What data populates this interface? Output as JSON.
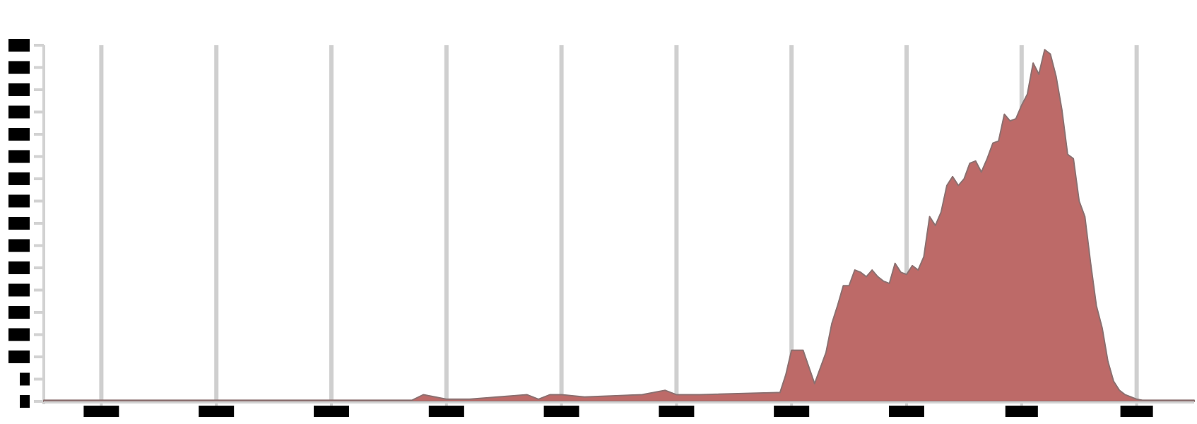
{
  "chart_data": {
    "type": "area",
    "title": "",
    "xlabel": "",
    "ylabel": "",
    "xlim": [
      -8.5,
      1.5
    ],
    "ylim": [
      0,
      16
    ],
    "grid": {
      "vertical": true,
      "horizontal": false
    },
    "legend": "none",
    "x_ticks": [
      -8,
      -7,
      -6,
      -5,
      -4,
      -3,
      -2,
      -1,
      0,
      1
    ],
    "y_ticks": [
      0,
      1,
      2,
      3,
      4,
      5,
      6,
      7,
      8,
      9,
      10,
      11,
      12,
      13,
      14,
      15,
      16
    ],
    "tick_labels_redacted": true,
    "series": [
      {
        "color": "#bd6a68",
        "outline": "#8c7070",
        "x": [
          -8.5,
          -5.3,
          -5.2,
          -5.0,
          -4.8,
          -4.3,
          -4.2,
          -4.1,
          -4.0,
          -3.8,
          -3.3,
          -3.1,
          -3.0,
          -2.9,
          -2.8,
          -2.1,
          -2.05,
          -2.0,
          -1.9,
          -1.8,
          -1.7,
          -1.65,
          -1.6,
          -1.55,
          -1.5,
          -1.45,
          -1.4,
          -1.35,
          -1.3,
          -1.25,
          -1.2,
          -1.15,
          -1.1,
          -1.05,
          -1.0,
          -0.95,
          -0.9,
          -0.85,
          -0.8,
          -0.75,
          -0.7,
          -0.65,
          -0.6,
          -0.55,
          -0.5,
          -0.45,
          -0.4,
          -0.35,
          -0.3,
          -0.25,
          -0.2,
          -0.15,
          -0.1,
          -0.05,
          0.0,
          0.05,
          0.1,
          0.15,
          0.2,
          0.25,
          0.3,
          0.35,
          0.4,
          0.45,
          0.5,
          0.55,
          0.6,
          0.65,
          0.7,
          0.75,
          0.8,
          0.85,
          0.9,
          0.95,
          1.0,
          1.05,
          1.1,
          1.15,
          1.2,
          1.25,
          1.3,
          1.35,
          1.4,
          1.45,
          1.5
        ],
        "values": [
          0.05,
          0.05,
          0.3,
          0.1,
          0.1,
          0.3,
          0.1,
          0.3,
          0.3,
          0.2,
          0.3,
          0.5,
          0.3,
          0.3,
          0.3,
          0.4,
          1.2,
          2.3,
          2.3,
          0.8,
          2.2,
          3.5,
          4.3,
          5.2,
          5.2,
          5.9,
          5.8,
          5.6,
          5.9,
          5.6,
          5.4,
          5.3,
          6.2,
          5.8,
          5.7,
          6.1,
          5.9,
          6.5,
          8.3,
          7.9,
          8.5,
          9.7,
          10.1,
          9.7,
          10.0,
          10.7,
          10.8,
          10.3,
          10.9,
          11.6,
          11.7,
          12.9,
          12.6,
          12.7,
          13.3,
          13.8,
          15.2,
          14.7,
          15.8,
          15.6,
          14.6,
          13.1,
          11.1,
          10.9,
          9.0,
          8.3,
          6.2,
          4.3,
          3.3,
          1.8,
          0.9,
          0.5,
          0.3,
          0.2,
          0.1,
          0.05,
          0.05,
          0.05,
          0.05,
          0.05,
          0.05,
          0.05,
          0.05,
          0.05,
          0.05
        ]
      }
    ]
  }
}
